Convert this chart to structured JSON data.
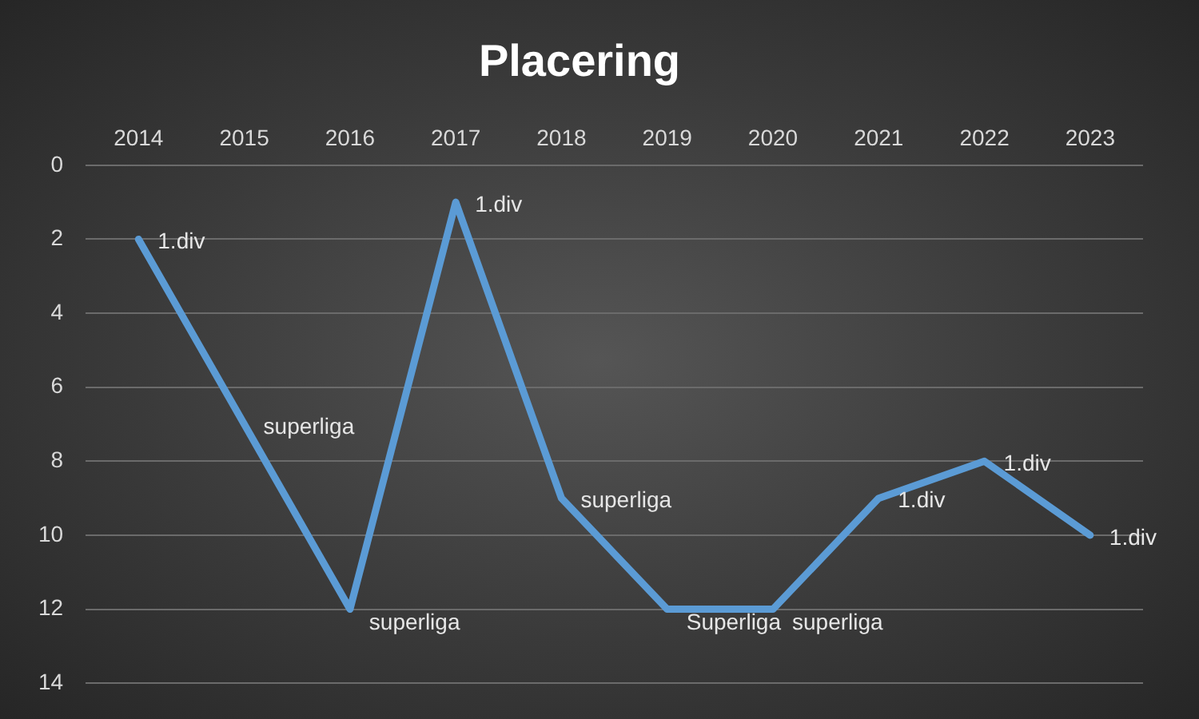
{
  "chart_data": {
    "type": "line",
    "title": "Placering",
    "categories": [
      "2014",
      "2015",
      "2016",
      "2017",
      "2018",
      "2019",
      "2020",
      "2021",
      "2022",
      "2023"
    ],
    "series": [
      {
        "color": "#5b9bd5",
        "values": [
          2,
          7,
          12,
          1,
          9,
          12,
          12,
          9,
          8,
          10
        ]
      }
    ],
    "annotations": [
      {
        "text": "1.div",
        "x": "2014",
        "y": 2
      },
      {
        "text": "superliga",
        "x": "2015",
        "y": 7
      },
      {
        "text": "superliga",
        "x": "2016",
        "y": 12
      },
      {
        "text": "1.div",
        "x": "2017",
        "y": 1
      },
      {
        "text": "superliga",
        "x": "2018",
        "y": 9
      },
      {
        "text": "Superliga",
        "x": "2019",
        "y": 12
      },
      {
        "text": "superliga",
        "x": "2020",
        "y": 12
      },
      {
        "text": "1.div",
        "x": "2021",
        "y": 9
      },
      {
        "text": "1.div",
        "x": "2022",
        "y": 8
      },
      {
        "text": "1.div",
        "x": "2023",
        "y": 10
      }
    ],
    "ylim": [
      14,
      0
    ],
    "yticks": [
      0,
      2,
      4,
      6,
      8,
      10,
      12,
      14
    ],
    "grid": "y",
    "legend": false,
    "marker": "none",
    "line_style": "solid"
  }
}
